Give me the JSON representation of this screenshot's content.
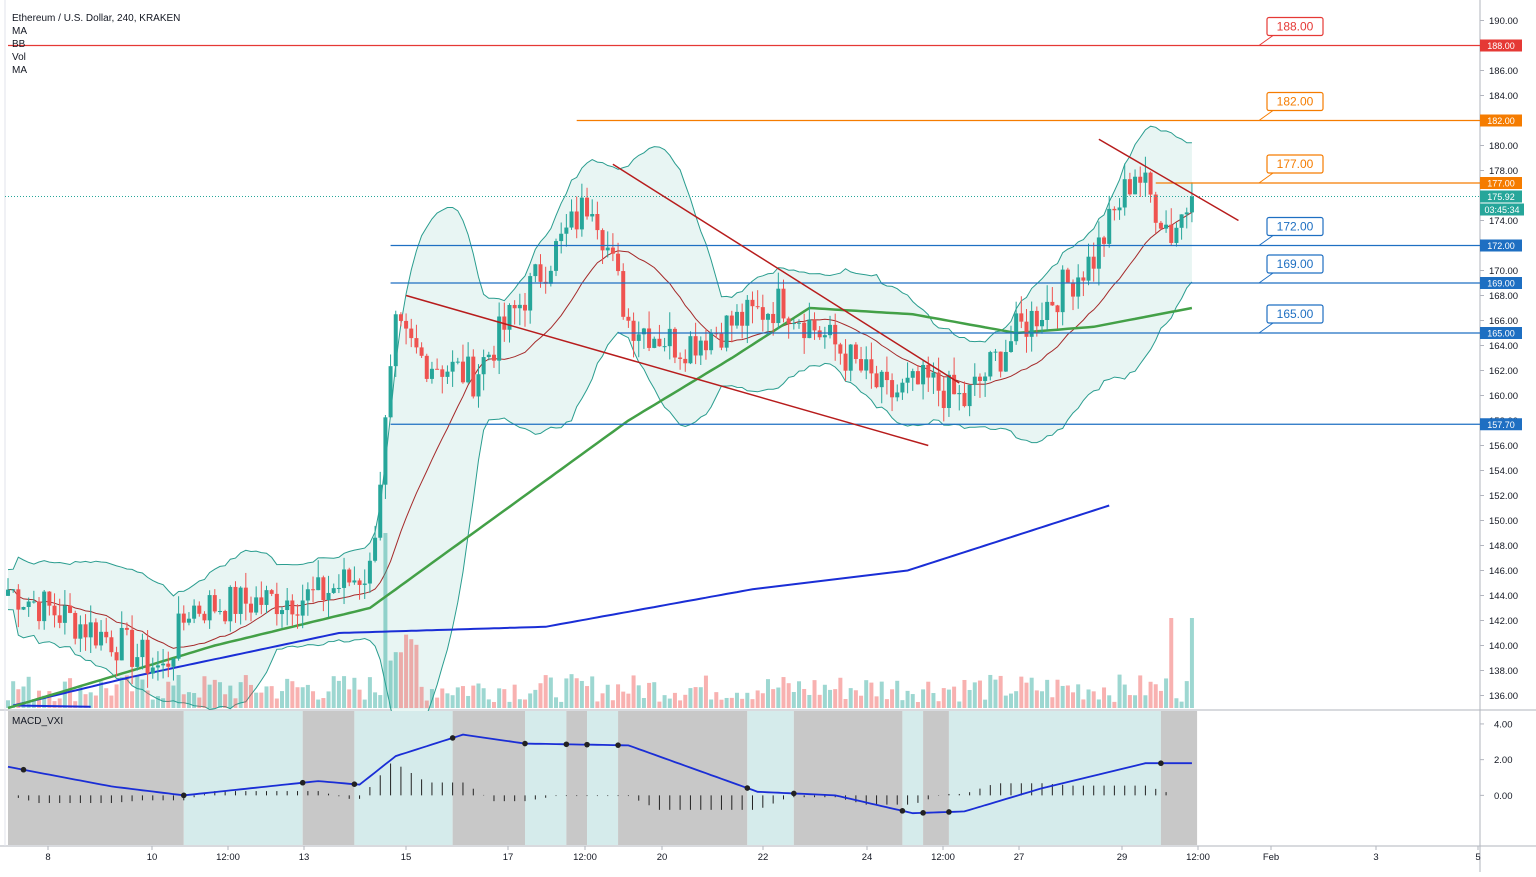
{
  "header": {
    "title": "Ethereum / U.S. Dollar, 240, KRAKEN",
    "indicators": [
      "MA",
      "BB",
      "Vol",
      "MA"
    ]
  },
  "macd_panel": {
    "label": "MACD_VXI",
    "ticks": [
      "4.00",
      "2.00",
      "0.00"
    ]
  },
  "price_axis": {
    "ticks": [
      "190.00",
      "188.00",
      "186.00",
      "184.00",
      "182.00",
      "180.00",
      "178.00",
      "176.00",
      "174.00",
      "172.00",
      "170.00",
      "168.00",
      "166.00",
      "164.00",
      "162.00",
      "160.00",
      "158.00",
      "156.00",
      "154.00",
      "152.00",
      "150.00",
      "148.00",
      "146.00",
      "144.00",
      "142.00",
      "140.00",
      "138.00",
      "136.00"
    ],
    "last_price": "175.92",
    "countdown": "03:45:34"
  },
  "time_axis": {
    "labels": [
      "8",
      "10",
      "12:00",
      "13",
      "15",
      "17",
      "12:00",
      "20",
      "22",
      "24",
      "12:00",
      "27",
      "29",
      "12:00",
      "Feb",
      "3",
      "5"
    ]
  },
  "levels": [
    {
      "price": 188.0,
      "label": "188.00",
      "tag": "188.00",
      "color": "#e53935"
    },
    {
      "price": 182.0,
      "label": "182.00",
      "tag": "182.00",
      "color": "#f57c00"
    },
    {
      "price": 177.0,
      "label": "177.00",
      "tag": "177.00",
      "color": "#f57c00"
    },
    {
      "price": 172.0,
      "label": "172.00",
      "tag": "172.00",
      "color": "#1e6fc2"
    },
    {
      "price": 169.0,
      "label": "169.00",
      "tag": "169.00",
      "color": "#1e6fc2"
    },
    {
      "price": 165.0,
      "label": "165.00",
      "tag": "165.00",
      "color": "#1e6fc2"
    },
    {
      "price": 157.7,
      "tag": "157.70",
      "color": "#1e6fc2"
    }
  ],
  "colors": {
    "up": "#26a69a",
    "down": "#ef5350",
    "ma_green": "#43a047",
    "ma_blue": "#1a2ed6",
    "trendline": "#b71c1c",
    "bb_fill": "#e8f5f3",
    "bb_line": "#2a9d8f",
    "macd_zone_light": "#d5ebeb",
    "macd_zone_dark": "#c8c8c8"
  },
  "chart_data": {
    "type": "candlestick",
    "candle_count": 230,
    "key_closes": [
      {
        "index": 0,
        "price": 144.5
      },
      {
        "index": 20,
        "price": 140.5
      },
      {
        "index": 30,
        "price": 138.0
      },
      {
        "index": 35,
        "price": 143.0
      },
      {
        "index": 60,
        "price": 144.0
      },
      {
        "index": 70,
        "price": 146.0
      },
      {
        "index": 75,
        "price": 165.0
      },
      {
        "index": 80,
        "price": 163.0
      },
      {
        "index": 90,
        "price": 161.5
      },
      {
        "index": 100,
        "price": 168.0
      },
      {
        "index": 113,
        "price": 176.0
      },
      {
        "index": 120,
        "price": 166.0
      },
      {
        "index": 130,
        "price": 164.0
      },
      {
        "index": 150,
        "price": 167.5
      },
      {
        "index": 160,
        "price": 164.0
      },
      {
        "index": 170,
        "price": 160.0
      },
      {
        "index": 178,
        "price": 161.0
      },
      {
        "index": 185,
        "price": 159.5
      },
      {
        "index": 195,
        "price": 165.0
      },
      {
        "index": 210,
        "price": 171.0
      },
      {
        "index": 218,
        "price": 178.0
      },
      {
        "index": 225,
        "price": 173.0
      },
      {
        "index": 229,
        "price": 175.92
      }
    ],
    "ma_slow": [
      {
        "index": 10,
        "price": 134.5
      },
      {
        "index": 40,
        "price": 137.5
      },
      {
        "index": 80,
        "price": 141.0
      },
      {
        "index": 120,
        "price": 141.5
      },
      {
        "index": 160,
        "price": 144.5
      },
      {
        "index": 190,
        "price": 146.0
      },
      {
        "index": 229,
        "price": 151.2
      }
    ],
    "ma_mid": [
      {
        "index": 0,
        "price": 135.0
      },
      {
        "index": 40,
        "price": 140.0
      },
      {
        "index": 70,
        "price": 143.0
      },
      {
        "index": 80,
        "price": 146.0
      },
      {
        "index": 100,
        "price": 152.0
      },
      {
        "index": 120,
        "price": 158.0
      },
      {
        "index": 140,
        "price": 163.0
      },
      {
        "index": 155,
        "price": 167.0
      },
      {
        "index": 175,
        "price": 166.5
      },
      {
        "index": 195,
        "price": 165.0
      },
      {
        "index": 210,
        "price": 165.5
      },
      {
        "index": 229,
        "price": 167.0
      }
    ],
    "trendlines": [
      {
        "from": {
          "index": 77,
          "price": 168.0
        },
        "to": {
          "index": 178,
          "price": 156.0
        }
      },
      {
        "from": {
          "index": 117,
          "price": 178.5
        },
        "to": {
          "index": 184,
          "price": 161.0
        }
      },
      {
        "from": {
          "index": 211,
          "price": 180.5
        },
        "to": {
          "index": 238,
          "price": 174.0
        }
      }
    ],
    "ylim": [
      135.0,
      191.0
    ],
    "macd_ylim": [
      -2.5,
      4.5
    ]
  }
}
